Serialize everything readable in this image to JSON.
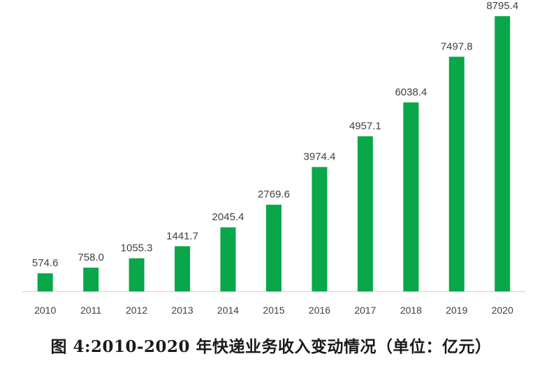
{
  "caption": "图 4:2010-2020 年快递业务收入变动情况（单位：亿元）",
  "colors": {
    "bar": "#0aa64a",
    "axis": "#d0d0d0",
    "label_text": "#404040"
  },
  "chart_data": {
    "type": "bar",
    "categories": [
      "2010",
      "2011",
      "2012",
      "2013",
      "2014",
      "2015",
      "2016",
      "2017",
      "2018",
      "2019",
      "2020"
    ],
    "values": [
      574.6,
      758.0,
      1055.3,
      1441.7,
      2045.4,
      2769.6,
      3974.4,
      4957.1,
      6038.4,
      7497.8,
      8795.4
    ],
    "value_labels": [
      "574.6",
      "758.0",
      "1055.3",
      "1441.7",
      "2045.4",
      "2769.6",
      "3974.4",
      "4957.1",
      "6038.4",
      "7497.8",
      "8795.4"
    ],
    "title": "",
    "xlabel": "",
    "ylabel": "",
    "ylim": [
      0,
      9000
    ],
    "grid": false,
    "legend": "none",
    "data_labels": true
  }
}
